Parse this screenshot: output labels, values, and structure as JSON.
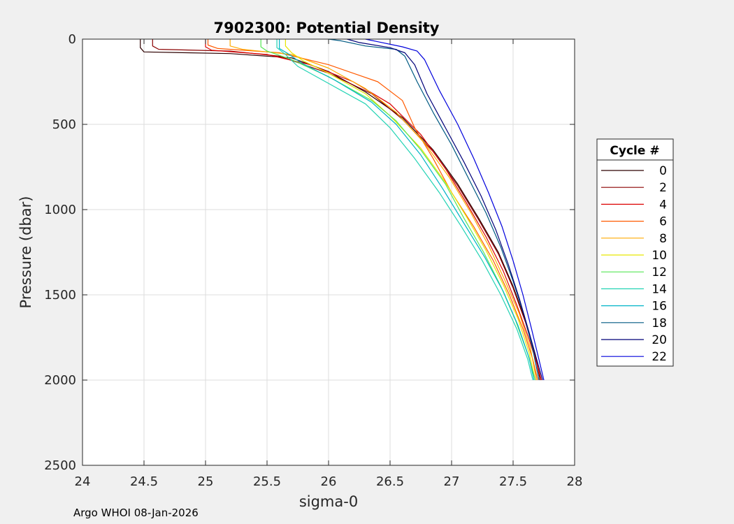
{
  "chart_data": {
    "type": "line",
    "title": "7902300: Potential Density",
    "xlabel": "sigma-0",
    "ylabel": "Pressure (dbar)",
    "xlim": [
      24,
      28
    ],
    "ylim": [
      0,
      2500
    ],
    "y_reversed": true,
    "xticks": [
      24,
      24.5,
      25,
      25.5,
      26,
      26.5,
      27,
      27.5,
      28
    ],
    "yticks": [
      0,
      500,
      1000,
      1500,
      2000,
      2500
    ],
    "grid": true,
    "legend": {
      "title": "Cycle #",
      "placement": "right-outside"
    },
    "series": [
      {
        "name": "0",
        "color": "#2d0000",
        "points": [
          [
            24.47,
            0
          ],
          [
            24.47,
            50
          ],
          [
            24.5,
            75
          ],
          [
            25.2,
            85
          ],
          [
            25.7,
            110
          ],
          [
            26.0,
            190
          ],
          [
            26.3,
            310
          ],
          [
            26.6,
            460
          ],
          [
            26.85,
            650
          ],
          [
            27.05,
            850
          ],
          [
            27.22,
            1050
          ],
          [
            27.38,
            1250
          ],
          [
            27.5,
            1450
          ],
          [
            27.6,
            1650
          ],
          [
            27.68,
            1850
          ],
          [
            27.72,
            2000
          ]
        ]
      },
      {
        "name": "2",
        "color": "#8b0000",
        "points": [
          [
            24.57,
            0
          ],
          [
            24.57,
            40
          ],
          [
            24.62,
            60
          ],
          [
            25.2,
            70
          ],
          [
            25.6,
            100
          ],
          [
            26.0,
            200
          ],
          [
            26.35,
            320
          ],
          [
            26.6,
            470
          ],
          [
            26.85,
            660
          ],
          [
            27.05,
            860
          ],
          [
            27.22,
            1060
          ],
          [
            27.38,
            1260
          ],
          [
            27.5,
            1460
          ],
          [
            27.6,
            1660
          ],
          [
            27.68,
            1860
          ],
          [
            27.72,
            2000
          ]
        ]
      },
      {
        "name": "4",
        "color": "#dc0000",
        "points": [
          [
            25.0,
            0
          ],
          [
            25.0,
            45
          ],
          [
            25.05,
            65
          ],
          [
            25.5,
            90
          ],
          [
            25.85,
            150
          ],
          [
            26.2,
            250
          ],
          [
            26.5,
            380
          ],
          [
            26.75,
            560
          ],
          [
            26.95,
            760
          ],
          [
            27.12,
            960
          ],
          [
            27.28,
            1160
          ],
          [
            27.42,
            1360
          ],
          [
            27.53,
            1560
          ],
          [
            27.63,
            1760
          ],
          [
            27.7,
            1920
          ],
          [
            27.73,
            2000
          ]
        ]
      },
      {
        "name": "6",
        "color": "#ff5a00",
        "points": [
          [
            25.02,
            0
          ],
          [
            25.02,
            35
          ],
          [
            25.1,
            55
          ],
          [
            25.6,
            80
          ],
          [
            26.0,
            150
          ],
          [
            26.4,
            250
          ],
          [
            26.6,
            360
          ],
          [
            26.7,
            520
          ],
          [
            26.85,
            700
          ],
          [
            27.0,
            900
          ],
          [
            27.18,
            1100
          ],
          [
            27.34,
            1300
          ],
          [
            27.47,
            1500
          ],
          [
            27.58,
            1700
          ],
          [
            27.66,
            1880
          ],
          [
            27.7,
            2000
          ]
        ]
      },
      {
        "name": "8",
        "color": "#ffaa00",
        "points": [
          [
            25.2,
            0
          ],
          [
            25.2,
            40
          ],
          [
            25.3,
            60
          ],
          [
            25.7,
            90
          ],
          [
            26.0,
            170
          ],
          [
            26.3,
            290
          ],
          [
            26.55,
            430
          ],
          [
            26.78,
            610
          ],
          [
            26.98,
            810
          ],
          [
            27.15,
            1010
          ],
          [
            27.3,
            1210
          ],
          [
            27.43,
            1410
          ],
          [
            27.55,
            1610
          ],
          [
            27.64,
            1810
          ],
          [
            27.69,
            2000
          ]
        ]
      },
      {
        "name": "10",
        "color": "#e6e600",
        "points": [
          [
            25.65,
            0
          ],
          [
            25.65,
            40
          ],
          [
            25.7,
            80
          ],
          [
            25.8,
            130
          ],
          [
            26.0,
            200
          ],
          [
            26.3,
            320
          ],
          [
            26.5,
            450
          ],
          [
            26.75,
            640
          ],
          [
            26.95,
            840
          ],
          [
            27.12,
            1040
          ],
          [
            27.28,
            1240
          ],
          [
            27.42,
            1440
          ],
          [
            27.54,
            1640
          ],
          [
            27.63,
            1840
          ],
          [
            27.68,
            2000
          ]
        ]
      },
      {
        "name": "12",
        "color": "#55e655",
        "points": [
          [
            25.45,
            0
          ],
          [
            25.45,
            45
          ],
          [
            25.5,
            70
          ],
          [
            25.7,
            120
          ],
          [
            26.0,
            220
          ],
          [
            26.35,
            360
          ],
          [
            26.55,
            480
          ],
          [
            26.75,
            650
          ],
          [
            26.95,
            850
          ],
          [
            27.1,
            1050
          ],
          [
            27.26,
            1250
          ],
          [
            27.4,
            1450
          ],
          [
            27.52,
            1650
          ],
          [
            27.62,
            1850
          ],
          [
            27.68,
            2000
          ]
        ]
      },
      {
        "name": "14",
        "color": "#22d3b4",
        "points": [
          [
            25.58,
            0
          ],
          [
            25.58,
            50
          ],
          [
            25.65,
            90
          ],
          [
            25.75,
            160
          ],
          [
            26.0,
            260
          ],
          [
            26.3,
            380
          ],
          [
            26.5,
            520
          ],
          [
            26.7,
            700
          ],
          [
            26.9,
            900
          ],
          [
            27.08,
            1100
          ],
          [
            27.25,
            1300
          ],
          [
            27.4,
            1500
          ],
          [
            27.53,
            1700
          ],
          [
            27.62,
            1880
          ],
          [
            27.66,
            2000
          ]
        ]
      },
      {
        "name": "16",
        "color": "#00b4c8",
        "points": [
          [
            25.6,
            0
          ],
          [
            25.6,
            55
          ],
          [
            25.67,
            85
          ],
          [
            25.78,
            140
          ],
          [
            26.05,
            240
          ],
          [
            26.35,
            370
          ],
          [
            26.55,
            500
          ],
          [
            26.75,
            680
          ],
          [
            26.93,
            880
          ],
          [
            27.1,
            1080
          ],
          [
            27.27,
            1280
          ],
          [
            27.42,
            1480
          ],
          [
            27.54,
            1680
          ],
          [
            27.63,
            1870
          ],
          [
            27.67,
            2000
          ]
        ]
      },
      {
        "name": "18",
        "color": "#005a82",
        "points": [
          [
            26.0,
            0
          ],
          [
            26.1,
            10
          ],
          [
            26.3,
            40
          ],
          [
            26.55,
            60
          ],
          [
            26.62,
            100
          ],
          [
            26.72,
            250
          ],
          [
            26.85,
            430
          ],
          [
            27.0,
            620
          ],
          [
            27.14,
            820
          ],
          [
            27.28,
            1020
          ],
          [
            27.4,
            1220
          ],
          [
            27.5,
            1420
          ],
          [
            27.59,
            1620
          ],
          [
            27.66,
            1820
          ],
          [
            27.71,
            2000
          ]
        ]
      },
      {
        "name": "20",
        "color": "#000078",
        "points": [
          [
            26.15,
            0
          ],
          [
            26.25,
            20
          ],
          [
            26.5,
            50
          ],
          [
            26.62,
            80
          ],
          [
            26.7,
            150
          ],
          [
            26.8,
            320
          ],
          [
            26.95,
            520
          ],
          [
            27.1,
            720
          ],
          [
            27.24,
            920
          ],
          [
            27.36,
            1120
          ],
          [
            27.46,
            1320
          ],
          [
            27.55,
            1520
          ],
          [
            27.63,
            1720
          ],
          [
            27.7,
            1900
          ],
          [
            27.74,
            2000
          ]
        ]
      },
      {
        "name": "22",
        "color": "#0000dc",
        "points": [
          [
            26.3,
            0
          ],
          [
            26.4,
            15
          ],
          [
            26.6,
            45
          ],
          [
            26.72,
            70
          ],
          [
            26.78,
            120
          ],
          [
            26.9,
            300
          ],
          [
            27.05,
            500
          ],
          [
            27.18,
            700
          ],
          [
            27.3,
            900
          ],
          [
            27.41,
            1100
          ],
          [
            27.5,
            1300
          ],
          [
            27.58,
            1500
          ],
          [
            27.65,
            1700
          ],
          [
            27.71,
            1880
          ],
          [
            27.75,
            2000
          ]
        ]
      }
    ]
  },
  "footer": "Argo WHOI 08-Jan-2026"
}
